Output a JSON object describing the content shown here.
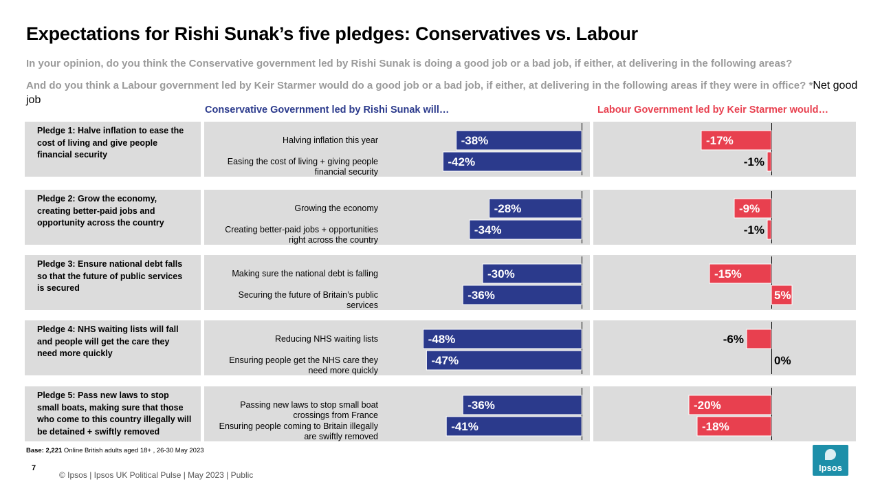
{
  "header": {
    "title": "Expectations for Rishi Sunak’s five pledges: Conservatives vs. Labour",
    "question1": "In your opinion, do you think the Conservative government led by Rishi Sunak is doing a good job or a bad job, if either, at delivering in the following areas?",
    "question2": "And do you think a Labour government led by Keir Starmer would do a good job or a bad job, if either, at delivering in the following areas if they were in office? *",
    "net_label": "Net good job"
  },
  "chart_data": {
    "type": "bar",
    "orientation": "horizontal",
    "value_unit": "%",
    "panels": [
      {
        "name": "Conservative Government led by Rishi Sunak will…",
        "color": "#2b3a8c"
      },
      {
        "name": "Labour Government led by Keir Starmer would…",
        "color": "#e8404f"
      }
    ],
    "groups": [
      {
        "pledge": "Pledge 1: Halve inflation to ease the cost of living and give people financial security",
        "items": [
          {
            "label": "Halving inflation this year",
            "conservative": -38,
            "labour": -17
          },
          {
            "label": "Easing the cost of living + giving people financial security",
            "conservative": -42,
            "labour": -1
          }
        ]
      },
      {
        "pledge": "Pledge 2: Grow the economy, creating better-paid jobs and opportunity across the country",
        "items": [
          {
            "label": "Growing the economy",
            "conservative": -28,
            "labour": -9
          },
          {
            "label": "Creating better-paid jobs + opportunities right across the country",
            "conservative": -34,
            "labour": -1
          }
        ]
      },
      {
        "pledge": "Pledge 3: Ensure national debt falls so that the future of public services is secured",
        "items": [
          {
            "label": "Making sure the national debt is falling",
            "conservative": -30,
            "labour": -15
          },
          {
            "label": "Securing the future of Britain’s public services",
            "conservative": -36,
            "labour": 5
          }
        ]
      },
      {
        "pledge": "Pledge 4: NHS waiting lists will fall and people will get the care they need more quickly",
        "items": [
          {
            "label": "Reducing NHS waiting lists",
            "conservative": -48,
            "labour": -6
          },
          {
            "label": "Ensuring people get the NHS care they need more quickly",
            "conservative": -47,
            "labour": 0
          }
        ]
      },
      {
        "pledge": "Pledge 5: Pass new laws to stop small boats, making sure that those who come to this country illegally will be detained + swiftly removed",
        "items": [
          {
            "label": "Passing new laws to stop small boat crossings from France",
            "conservative": -36,
            "labour": -20
          },
          {
            "label": "Ensuring people coming to Britain illegally are swiftly removed",
            "conservative": -41,
            "labour": -18
          }
        ]
      }
    ]
  },
  "base": {
    "bold": "Base: 2,221",
    "rest": " Online British adults aged 18+ , 26-30 May 2023"
  },
  "page_number": "7",
  "footer": "© Ipsos |  Ipsos UK Political Pulse | May 2023 | Public",
  "logo_text": "Ipsos"
}
